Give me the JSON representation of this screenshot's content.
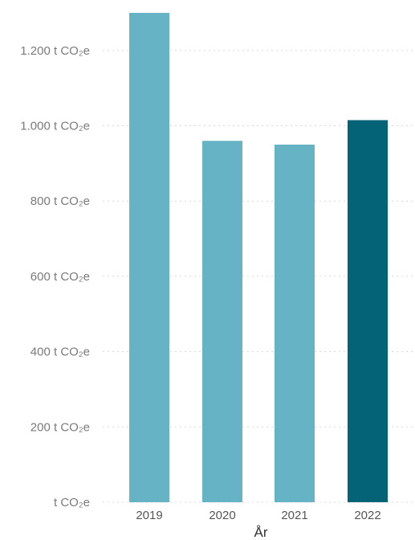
{
  "chart_data": {
    "type": "bar",
    "categories": [
      "2019",
      "2020",
      "2021",
      "2022"
    ],
    "values": [
      1300,
      960,
      950,
      1015
    ],
    "highlight_index": 3,
    "xlabel": "År",
    "ylabel": "",
    "ylim": [
      0,
      1300
    ],
    "yticks": [
      0,
      200,
      400,
      600,
      800,
      1000,
      1200
    ],
    "ytick_labels": [
      "t CO₂e",
      "200 t CO₂e",
      "400 t CO₂e",
      "600 t CO₂e",
      "800 t CO₂e",
      "1.000 t CO₂e",
      "1.200 t CO₂e"
    ],
    "grid": true,
    "colors": {
      "bar": "#67b3c6",
      "highlight": "#056378",
      "grid": "#d8d8d8"
    }
  }
}
